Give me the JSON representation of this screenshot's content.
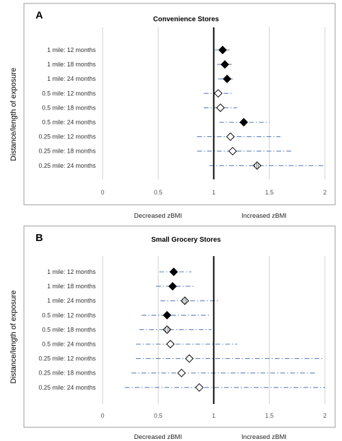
{
  "figure": {
    "ylabel": "Distance/length of exposure",
    "direction_left": "Decreased zBMI",
    "direction_right": "Increased zBMI"
  },
  "chart_data": [
    {
      "type": "scatter",
      "panel_label": "A",
      "title": "Convenience Stores",
      "ylabel": "Distance/length of exposure",
      "xlim": [
        0,
        2
      ],
      "xticks": [
        "0",
        "0.5",
        "1",
        "1.5",
        "2"
      ],
      "reference_x": 1,
      "categories": [
        "1 mile: 12 months",
        "1 mile: 18 months",
        "1 mile: 24 months",
        "0.5 mile: 12 months",
        "0.5 mile: 18 months",
        "0.5 mile: 24 months",
        "0.25 mile: 12 months",
        "0.25 mile: 18 months",
        "0.25 mile: 24 months"
      ],
      "estimates": [
        1.08,
        1.1,
        1.12,
        1.04,
        1.06,
        1.27,
        1.15,
        1.17,
        1.39
      ],
      "ci_lower": [
        1.01,
        1.03,
        1.04,
        0.91,
        0.91,
        1.05,
        0.85,
        0.85,
        0.96
      ],
      "ci_upper": [
        1.16,
        1.17,
        1.19,
        1.18,
        1.21,
        1.5,
        1.6,
        1.7,
        2.0
      ],
      "marker": [
        "filled",
        "filled",
        "filled",
        "open",
        "open",
        "filled",
        "open",
        "open",
        "hatched"
      ]
    },
    {
      "type": "scatter",
      "panel_label": "B",
      "title": "Small Grocery Stores",
      "ylabel": "Distance/length of exposure",
      "xlim": [
        0,
        2
      ],
      "xticks": [
        "0",
        "0.5",
        "1",
        "1.5",
        "2"
      ],
      "reference_x": 1,
      "categories": [
        "1 mile: 12 months",
        "1 mile: 18 months",
        "1 mile: 24 months",
        "0.5 mile: 12 months",
        "0.5 mile: 18 months",
        "0.5 mile: 24 months",
        "0.25 mile: 12 months",
        "0.25 mile: 18 months",
        "0.25 mile: 24 months"
      ],
      "estimates": [
        0.64,
        0.63,
        0.74,
        0.58,
        0.58,
        0.61,
        0.78,
        0.71,
        0.87
      ],
      "ci_lower": [
        0.51,
        0.48,
        0.52,
        0.35,
        0.33,
        0.3,
        0.3,
        0.26,
        0.2
      ],
      "ci_upper": [
        0.8,
        0.83,
        1.04,
        0.97,
        0.98,
        1.21,
        1.99,
        1.93,
        2.0
      ],
      "marker": [
        "filled",
        "filled",
        "hatched",
        "filled",
        "hatched",
        "open",
        "open",
        "open",
        "open"
      ]
    }
  ]
}
